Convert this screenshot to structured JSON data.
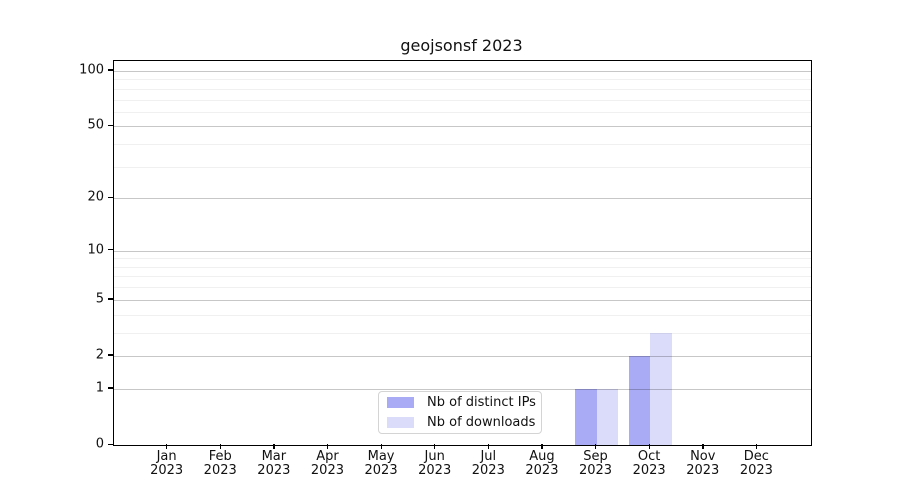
{
  "title": "geojsonsf 2023",
  "legend": {
    "items": [
      {
        "label": "Nb of distinct IPs",
        "color": "#a9abf4"
      },
      {
        "label": "Nb of downloads",
        "color": "#dadcfa"
      }
    ]
  },
  "chart_data": {
    "type": "bar",
    "title": "geojsonsf 2023",
    "categories": [
      "Jan 2023",
      "Feb 2023",
      "Mar 2023",
      "Apr 2023",
      "May 2023",
      "Jun 2023",
      "Jul 2023",
      "Aug 2023",
      "Sep 2023",
      "Oct 2023",
      "Nov 2023",
      "Dec 2023"
    ],
    "x_tick_month": [
      "Jan",
      "Feb",
      "Mar",
      "Apr",
      "May",
      "Jun",
      "Jul",
      "Aug",
      "Sep",
      "Oct",
      "Nov",
      "Dec"
    ],
    "x_tick_year": [
      "2023",
      "2023",
      "2023",
      "2023",
      "2023",
      "2023",
      "2023",
      "2023",
      "2023",
      "2023",
      "2023",
      "2023"
    ],
    "series": [
      {
        "name": "Nb of distinct IPs",
        "color": "#a9abf4",
        "values": [
          0,
          0,
          0,
          0,
          0,
          0,
          0,
          0,
          1,
          2,
          0,
          0
        ]
      },
      {
        "name": "Nb of downloads",
        "color": "#dadcfa",
        "values": [
          0,
          0,
          0,
          0,
          0,
          0,
          0,
          0,
          1,
          3,
          0,
          0
        ]
      }
    ],
    "xlabel": "",
    "ylabel": "",
    "grid": "on",
    "legend_position": "inside bottom-center",
    "y_axis": {
      "scale": "log1p",
      "tick_values": [
        100,
        50,
        20,
        10,
        5,
        2,
        1,
        0
      ],
      "tick_labels": [
        "100",
        "50",
        "20",
        "10",
        "5",
        "2",
        "1",
        "0"
      ],
      "minor_gridline_values": [
        3,
        4,
        6,
        7,
        8,
        9,
        30,
        40,
        60,
        70,
        80,
        90
      ],
      "major_gridline_values": [
        1,
        2,
        5,
        10,
        20,
        50,
        100
      ],
      "range": [
        0,
        113
      ]
    }
  }
}
